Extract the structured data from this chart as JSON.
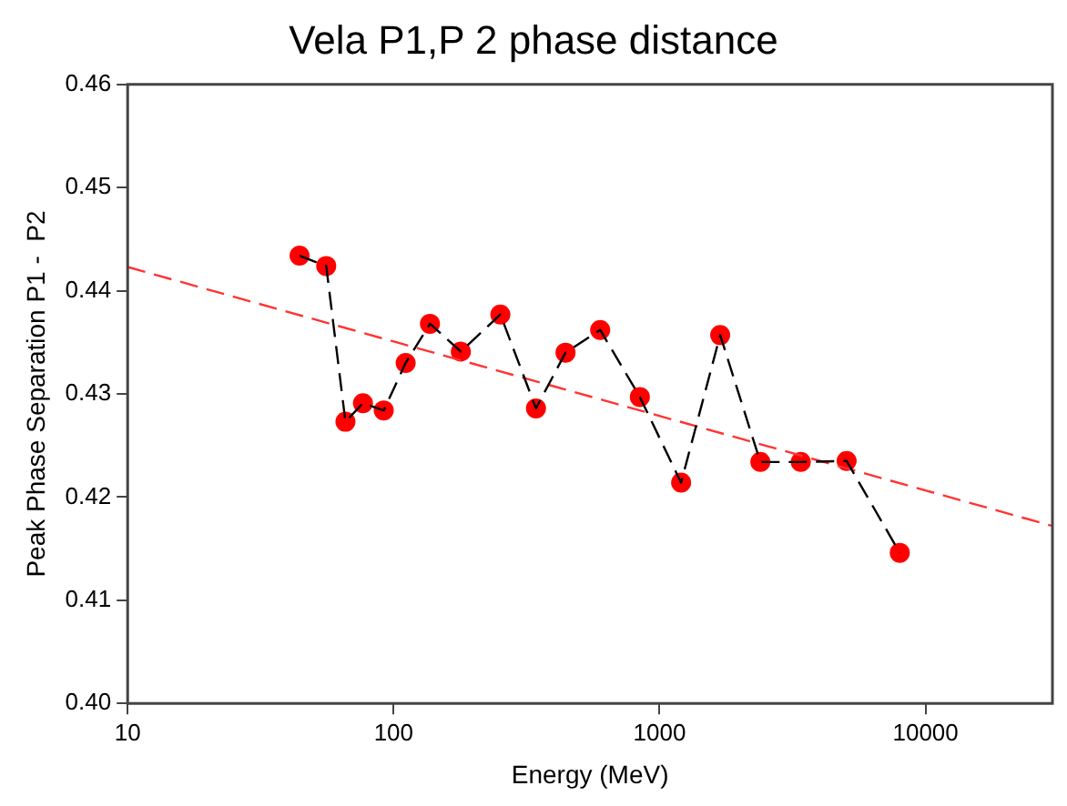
{
  "chart_data": {
    "type": "scatter",
    "title": "Vela P1,P 2 phase distance",
    "xlabel": "Energy (MeV)",
    "ylabel": "Peak Phase Separation P1 -  P2",
    "log": "x",
    "xlim": [
      10,
      30000
    ],
    "xticks": [
      10,
      100,
      1000,
      10000
    ],
    "ylim": [
      0.4,
      0.46
    ],
    "yticks": [
      {
        "value": 0.4,
        "label": "0.40"
      },
      {
        "value": 0.41,
        "label": "0.41"
      },
      {
        "value": 0.42,
        "label": "0.42"
      },
      {
        "value": 0.43,
        "label": "0.43"
      },
      {
        "value": 0.44,
        "label": "0.44"
      },
      {
        "value": 0.45,
        "label": "0.45"
      },
      {
        "value": 0.46,
        "label": "0.46"
      }
    ],
    "grid": false,
    "legend": false,
    "series": [
      {
        "type": "line",
        "color": "#000000",
        "marker": "none",
        "line_style": "dashed",
        "x": [
          44.3,
          55.8,
          65.9,
          76.7,
          91.8,
          111,
          137,
          179,
          252,
          343,
          443,
          598,
          843,
          1205,
          1690,
          2393,
          3395,
          5050,
          8000
        ],
        "values": [
          0.4434,
          0.4424,
          0.4273,
          0.4291,
          0.4284,
          0.433,
          0.4368,
          0.4341,
          0.4377,
          0.4286,
          0.434,
          0.4362,
          0.4297,
          0.4214,
          0.4357,
          0.4234,
          0.4234,
          0.4235,
          0.4146
        ]
      },
      {
        "color": "#ff0000",
        "marker": "circle",
        "x": [
          44.3,
          55.8,
          65.9,
          76.7,
          91.8,
          111,
          137,
          179,
          252,
          343,
          443,
          598,
          843,
          1205,
          1690,
          2393,
          3395,
          5050,
          8000
        ],
        "values": [
          0.4434,
          0.4424,
          0.4273,
          0.4291,
          0.4284,
          0.433,
          0.4368,
          0.4341,
          0.4377,
          0.4286,
          0.434,
          0.4362,
          0.4297,
          0.4214,
          0.4357,
          0.4234,
          0.4234,
          0.4235,
          0.4146
        ]
      },
      {
        "type": "line",
        "color": "#ff3333",
        "marker": "none",
        "line_style": "dashed",
        "x": [
          10,
          30000
        ],
        "values": [
          0.4423,
          0.4172
        ]
      }
    ]
  }
}
